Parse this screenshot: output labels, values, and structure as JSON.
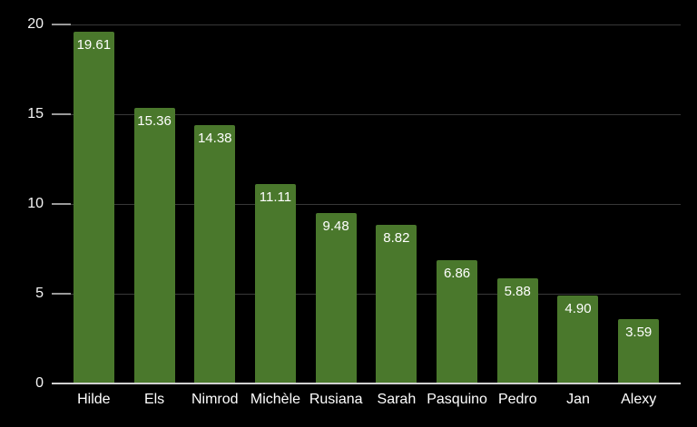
{
  "chart_data": {
    "type": "bar",
    "title": "",
    "xlabel": "",
    "ylabel": "",
    "categories": [
      "Hilde",
      "Els",
      "Nimrod",
      "Michèle",
      "Rusiana",
      "Sarah",
      "Pasquino",
      "Pedro",
      "Jan",
      "Alexy"
    ],
    "values": [
      19.61,
      15.36,
      14.38,
      11.11,
      9.48,
      8.82,
      6.86,
      5.88,
      4.9,
      3.59
    ],
    "value_labels": [
      "19.61",
      "15.36",
      "14.38",
      "11.11",
      "9.48",
      "8.82",
      "6.86",
      "5.88",
      "4.90",
      "3.59"
    ],
    "ylim": [
      0,
      20
    ],
    "y_ticks": [
      0,
      5,
      10,
      15,
      20
    ],
    "y_tick_labels": [
      "0",
      "5",
      "10",
      "15",
      "20"
    ],
    "grid": true,
    "legend": false,
    "colors": {
      "background": "#000000",
      "bar": "#4a782c",
      "gridline": "#383838",
      "tick": "#9a9a9a",
      "axis_line": "#d0d0d0",
      "value_label": "#ffffff",
      "axis_text": "#f5f5f5"
    }
  }
}
